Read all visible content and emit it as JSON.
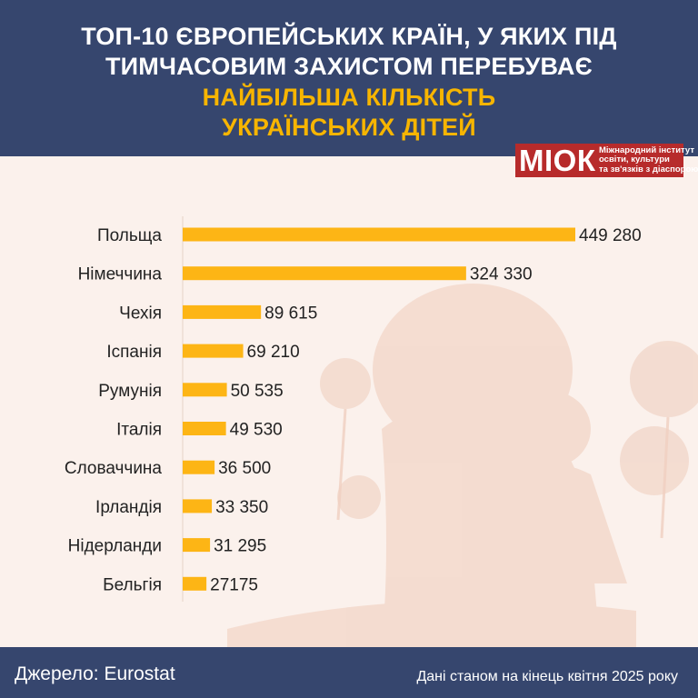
{
  "header": {
    "title_line1": "ТОП-10 ЄВРОПЕЙСЬКИХ КРАЇН, У ЯКИХ ПІД",
    "title_line2": "ТИМЧАСОВИМ ЗАХИСТОМ ПЕРЕБУВАЄ",
    "title_line3": "НАЙБІЛЬША КІЛЬКІСТЬ",
    "title_line4": "УКРАЇНСЬКИХ ДІТЕЙ"
  },
  "logo": {
    "mark": "МІОК",
    "text_line1": "Міжнародний інститут",
    "text_line2": "освіти, культури",
    "text_line3": "та зв'язків з діаспорою"
  },
  "colors": {
    "header_bg": "#36466e",
    "accent": "#f7b500",
    "bar": "#fdb515",
    "logo_bg": "#b72b2b",
    "page_bg": "#fbf1ec"
  },
  "chart_data": {
    "type": "bar",
    "orientation": "horizontal",
    "categories": [
      "Польща",
      "Німеччина",
      "Чехія",
      "Іспанія",
      "Румунія",
      "Італія",
      "Словаччина",
      "Ірландія",
      "Нідерланди",
      "Бельгія"
    ],
    "values": [
      449280,
      324330,
      89615,
      69210,
      50535,
      49530,
      36500,
      33350,
      31295,
      27175
    ],
    "value_labels": [
      "449 280",
      "324  330",
      "89 615",
      "69 210",
      "50 535",
      "49 530",
      "36 500",
      "33 350",
      "31 295",
      "27175"
    ],
    "xlim": [
      0,
      449280
    ],
    "grid": false,
    "legend": false
  },
  "footer": {
    "source": "Джерело: Eurostat",
    "note": "Дані станом на кінець квітня 2025 року"
  }
}
